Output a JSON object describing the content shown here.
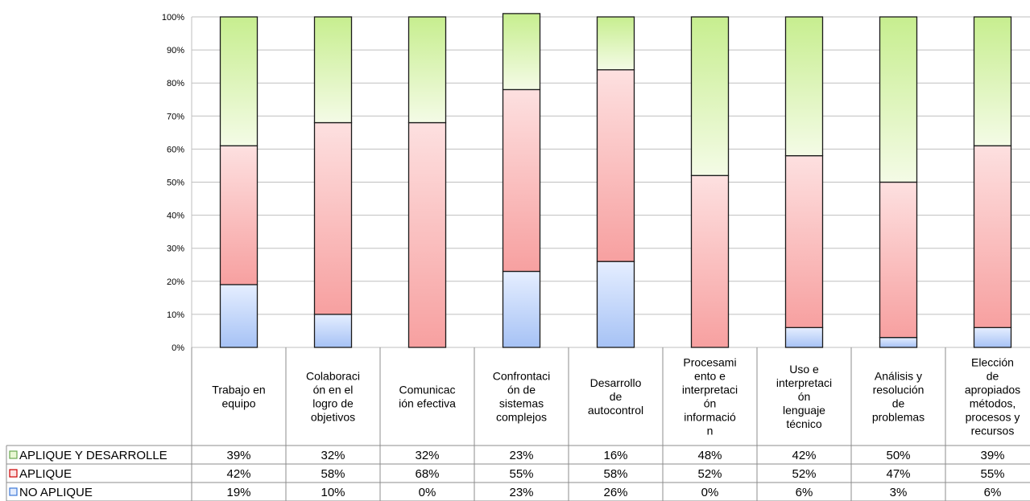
{
  "chart_data": {
    "type": "bar",
    "stacked": true,
    "percent": true,
    "ylim": [
      0,
      100
    ],
    "yticks": [
      "0%",
      "10%",
      "20%",
      "30%",
      "40%",
      "50%",
      "60%",
      "70%",
      "80%",
      "90%",
      "100%"
    ],
    "grid": true,
    "data_table": true,
    "categories": [
      [
        "Trabajo en",
        "equipo"
      ],
      [
        "Colaboraci",
        "ón en el",
        "logro de",
        "objetivos"
      ],
      [
        "Comunicac",
        "ión efectiva"
      ],
      [
        "Confrontaci",
        "ón de",
        "sistemas",
        "complejos"
      ],
      [
        "Desarrollo",
        "de",
        "autocontrol"
      ],
      [
        "Procesami",
        "ento e",
        "interpretaci",
        "ón",
        "informació",
        "n"
      ],
      [
        "Uso e",
        "interpretaci",
        "ón",
        "lenguaje",
        "técnico"
      ],
      [
        "Análisis y",
        "resolución",
        "de",
        "problemas"
      ],
      [
        "Elección",
        "de",
        "apropiados",
        "métodos,",
        "procesos y",
        "recursos"
      ]
    ],
    "series": [
      {
        "name": "APLIQUE Y DESARROLLE",
        "values": [
          39,
          32,
          32,
          23,
          16,
          48,
          42,
          50,
          39
        ],
        "labels": [
          "39%",
          "32%",
          "32%",
          "23%",
          "16%",
          "48%",
          "42%",
          "50%",
          "39%"
        ],
        "color": "#c6ec8e"
      },
      {
        "name": "APLIQUE",
        "values": [
          42,
          58,
          68,
          55,
          58,
          52,
          52,
          47,
          55
        ],
        "labels": [
          "42%",
          "58%",
          "68%",
          "55%",
          "58%",
          "52%",
          "52%",
          "47%",
          "55%"
        ],
        "color": "#f7a3a3"
      },
      {
        "name": "NO APLIQUE",
        "values": [
          19,
          10,
          0,
          23,
          26,
          0,
          6,
          3,
          6
        ],
        "labels": [
          "19%",
          "10%",
          "0%",
          "23%",
          "26%",
          "0%",
          "6%",
          "3%",
          "6%"
        ],
        "color": "#a9c4f5"
      }
    ]
  }
}
